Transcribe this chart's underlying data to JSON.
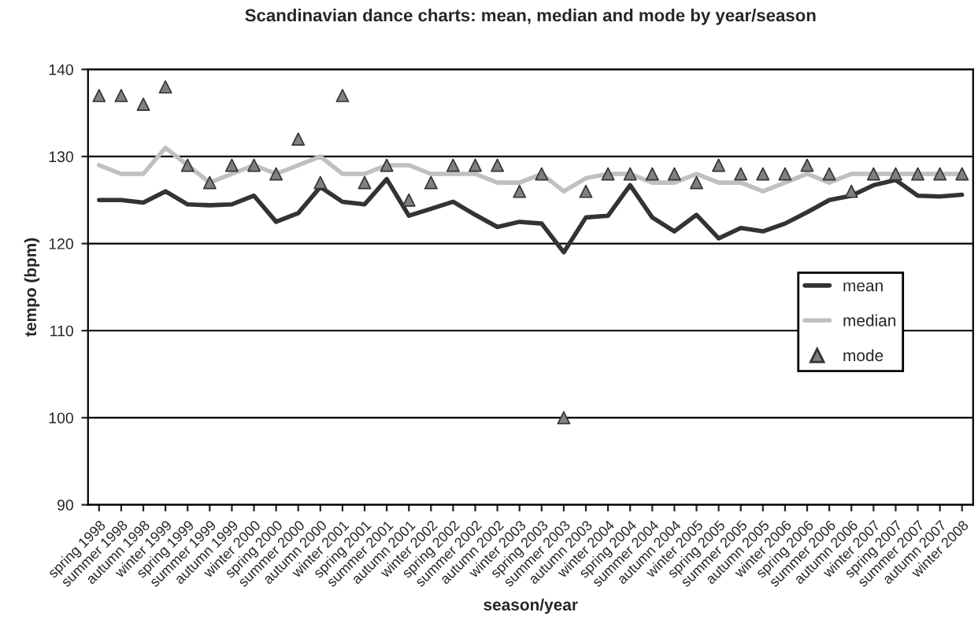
{
  "chart_data": {
    "type": "line",
    "title": "Scandinavian dance charts: mean, median and mode by year/season",
    "xlabel": "season/year",
    "ylabel": "tempo (bpm)",
    "categories": [
      "spring 1998",
      "summer 1998",
      "autumn 1998",
      "winter 1999",
      "spring 1999",
      "summer 1999",
      "autumn 1999",
      "winter 2000",
      "spring 2000",
      "summer 2000",
      "autumn 2000",
      "winter 2001",
      "spring 2001",
      "summer 2001",
      "autumn 2001",
      "winter 2002",
      "spring 2002",
      "summer 2002",
      "autumn 2002",
      "winter 2003",
      "spring 2003",
      "summer 2003",
      "autumn 2003",
      "winter 2004",
      "spring 2004",
      "summer 2004",
      "autumn 2004",
      "winter 2005",
      "spring 2005",
      "summer 2005",
      "autumn 2005",
      "winter 2006",
      "spring 2006",
      "summer 2006",
      "autumn 2006",
      "winter 2007",
      "spring 2007",
      "summer 2007",
      "autumn 2007",
      "winter 2008"
    ],
    "series": [
      {
        "name": "mean",
        "color": "#333333",
        "marker": "none",
        "values": [
          125,
          125,
          124.7,
          126,
          124.5,
          124.4,
          124.5,
          125.5,
          122.5,
          123.5,
          126.5,
          124.8,
          124.5,
          127.4,
          123.2,
          124,
          124.8,
          123.3,
          121.9,
          122.5,
          122.3,
          119,
          123,
          123.2,
          126.7,
          123,
          121.4,
          123.3,
          120.6,
          121.8,
          121.4,
          122.3,
          123.6,
          125,
          125.5,
          126.7,
          127.3,
          125.5,
          125.4,
          125.6
        ]
      },
      {
        "name": "median",
        "color": "#c0c0c0",
        "marker": "none",
        "values": [
          129,
          128,
          128,
          131,
          129,
          127,
          128,
          129,
          128,
          129,
          130,
          128,
          128,
          129,
          129,
          128,
          128,
          128,
          127,
          127,
          128,
          126,
          127.5,
          128,
          128,
          127,
          127,
          128,
          127,
          127,
          126,
          127,
          128,
          127,
          128,
          128,
          128,
          128,
          128,
          128
        ]
      },
      {
        "name": "mode",
        "type": "scatter",
        "color": "#808080",
        "marker": "triangle",
        "values": [
          137,
          137,
          136,
          138,
          129,
          127,
          129,
          129,
          128,
          132,
          127,
          137,
          127,
          129,
          125,
          127,
          129,
          129,
          129,
          126,
          128,
          100,
          126,
          128,
          128,
          128,
          128,
          127,
          129,
          128,
          128,
          128,
          129,
          128,
          126,
          128,
          128,
          128,
          128,
          128
        ]
      }
    ],
    "ylim": [
      90,
      140
    ],
    "yticks": [
      90,
      100,
      110,
      120,
      130,
      140
    ],
    "grid": "y",
    "legend": "right"
  }
}
